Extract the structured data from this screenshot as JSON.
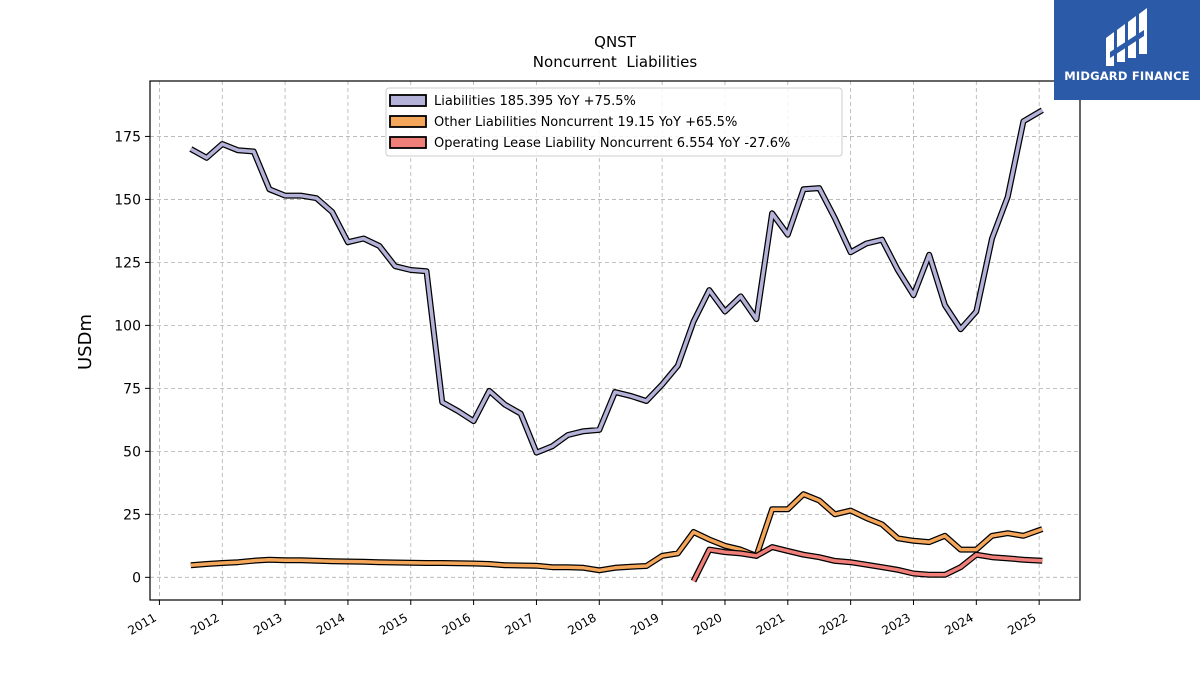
{
  "brand": {
    "name": "MIDGARD FINANCE",
    "bg_color": "#2b5aa8"
  },
  "chart_data": {
    "type": "line",
    "title": "QNST",
    "subtitle": "Noncurrent  Liabilities",
    "ylabel": "USDm",
    "xlabel": "",
    "ylim": [
      -9,
      197
    ],
    "xlim": [
      2010.85,
      2025.65
    ],
    "yticks": [
      0,
      25,
      50,
      75,
      100,
      125,
      150,
      175
    ],
    "xticks": [
      2011,
      2012,
      2013,
      2014,
      2015,
      2016,
      2017,
      2018,
      2019,
      2020,
      2021,
      2022,
      2023,
      2024,
      2025
    ],
    "grid": true,
    "legend_position": "top-center",
    "series": [
      {
        "name": "Liabilities",
        "legend_label": "Liabilities  185.395 YoY +75.5%",
        "color": "#b4b2d8",
        "points": [
          [
            2011.5,
            170
          ],
          [
            2011.75,
            166.5
          ],
          [
            2012.0,
            172
          ],
          [
            2012.25,
            169.5
          ],
          [
            2012.5,
            169
          ],
          [
            2012.75,
            154
          ],
          [
            2013.0,
            151.5
          ],
          [
            2013.25,
            151.5
          ],
          [
            2013.5,
            150.5
          ],
          [
            2013.75,
            145
          ],
          [
            2014.0,
            133
          ],
          [
            2014.25,
            134.5
          ],
          [
            2014.5,
            131.5
          ],
          [
            2014.75,
            123.5
          ],
          [
            2015.0,
            122
          ],
          [
            2015.25,
            121.5
          ],
          [
            2015.5,
            69.5
          ],
          [
            2015.75,
            66
          ],
          [
            2016.0,
            62
          ],
          [
            2016.25,
            74
          ],
          [
            2016.5,
            68.5
          ],
          [
            2016.75,
            65
          ],
          [
            2017.0,
            49.5
          ],
          [
            2017.25,
            52
          ],
          [
            2017.5,
            56.5
          ],
          [
            2017.75,
            58
          ],
          [
            2018.0,
            58.5
          ],
          [
            2018.25,
            73.5
          ],
          [
            2018.5,
            72
          ],
          [
            2018.75,
            70
          ],
          [
            2019.0,
            76.5
          ],
          [
            2019.25,
            84
          ],
          [
            2019.5,
            101.5
          ],
          [
            2019.75,
            114
          ],
          [
            2020.0,
            105.5
          ],
          [
            2020.25,
            111.5
          ],
          [
            2020.5,
            102.5
          ],
          [
            2020.75,
            144.5
          ],
          [
            2021.0,
            136
          ],
          [
            2021.25,
            154
          ],
          [
            2021.5,
            154.5
          ],
          [
            2021.75,
            142.5
          ],
          [
            2022.0,
            129
          ],
          [
            2022.25,
            132.5
          ],
          [
            2022.5,
            134
          ],
          [
            2022.75,
            122
          ],
          [
            2023.0,
            112
          ],
          [
            2023.25,
            128
          ],
          [
            2023.5,
            108
          ],
          [
            2023.75,
            98.5
          ],
          [
            2024.0,
            105.5
          ],
          [
            2024.25,
            134.5
          ],
          [
            2024.5,
            151
          ],
          [
            2024.75,
            181
          ],
          [
            2025.05,
            185.4
          ]
        ]
      },
      {
        "name": "Other Liabilities Noncurrent",
        "legend_label": "Other Liabilities Noncurrent  19.15 YoY +65.5%",
        "color": "#f4a75a",
        "points": [
          [
            2011.5,
            4.8
          ],
          [
            2011.75,
            5.3
          ],
          [
            2012.0,
            5.7
          ],
          [
            2012.25,
            6.0
          ],
          [
            2012.5,
            6.6
          ],
          [
            2012.75,
            7.0
          ],
          [
            2013.0,
            6.8
          ],
          [
            2013.25,
            6.8
          ],
          [
            2013.5,
            6.6
          ],
          [
            2013.75,
            6.4
          ],
          [
            2014.0,
            6.3
          ],
          [
            2014.25,
            6.2
          ],
          [
            2014.5,
            6.0
          ],
          [
            2014.75,
            5.9
          ],
          [
            2015.0,
            5.8
          ],
          [
            2015.25,
            5.7
          ],
          [
            2015.5,
            5.7
          ],
          [
            2015.75,
            5.6
          ],
          [
            2016.0,
            5.5
          ],
          [
            2016.25,
            5.3
          ],
          [
            2016.5,
            4.8
          ],
          [
            2016.75,
            4.7
          ],
          [
            2017.0,
            4.6
          ],
          [
            2017.25,
            4.0
          ],
          [
            2017.5,
            4.0
          ],
          [
            2017.75,
            3.8
          ],
          [
            2018.0,
            2.8
          ],
          [
            2018.25,
            3.8
          ],
          [
            2018.5,
            4.2
          ],
          [
            2018.75,
            4.5
          ],
          [
            2019.0,
            8.5
          ],
          [
            2019.25,
            9.5
          ],
          [
            2019.5,
            18
          ],
          [
            2019.75,
            15
          ],
          [
            2020.0,
            12.5
          ],
          [
            2020.25,
            11
          ],
          [
            2020.5,
            8.5
          ],
          [
            2020.75,
            27
          ],
          [
            2021.0,
            27
          ],
          [
            2021.25,
            33
          ],
          [
            2021.5,
            30.5
          ],
          [
            2021.75,
            25
          ],
          [
            2022.0,
            26.5
          ],
          [
            2022.25,
            23.5
          ],
          [
            2022.5,
            21
          ],
          [
            2022.75,
            15.5
          ],
          [
            2023.0,
            14.5
          ],
          [
            2023.25,
            14
          ],
          [
            2023.5,
            16.5
          ],
          [
            2023.75,
            11
          ],
          [
            2024.0,
            11
          ],
          [
            2024.25,
            16.5
          ],
          [
            2024.5,
            17.5
          ],
          [
            2024.75,
            16.5
          ],
          [
            2025.05,
            19.15
          ]
        ]
      },
      {
        "name": "Operating Lease Liability Noncurrent",
        "legend_label": "Operating Lease Liability Noncurrent  6.554 YoY -27.6%",
        "color": "#f07f7a",
        "points": [
          [
            2019.5,
            -1.5
          ],
          [
            2019.75,
            11
          ],
          [
            2020.0,
            10
          ],
          [
            2020.25,
            9.5
          ],
          [
            2020.5,
            8.5
          ],
          [
            2020.75,
            12
          ],
          [
            2021.0,
            10.5
          ],
          [
            2021.25,
            9
          ],
          [
            2021.5,
            8
          ],
          [
            2021.75,
            6.5
          ],
          [
            2022.0,
            6
          ],
          [
            2022.25,
            5
          ],
          [
            2022.5,
            4
          ],
          [
            2022.75,
            3
          ],
          [
            2023.0,
            1.5
          ],
          [
            2023.25,
            1
          ],
          [
            2023.5,
            1
          ],
          [
            2023.75,
            4
          ],
          [
            2024.0,
            9
          ],
          [
            2024.25,
            8
          ],
          [
            2024.5,
            7.5
          ],
          [
            2024.75,
            7
          ],
          [
            2025.05,
            6.554
          ]
        ]
      }
    ]
  }
}
